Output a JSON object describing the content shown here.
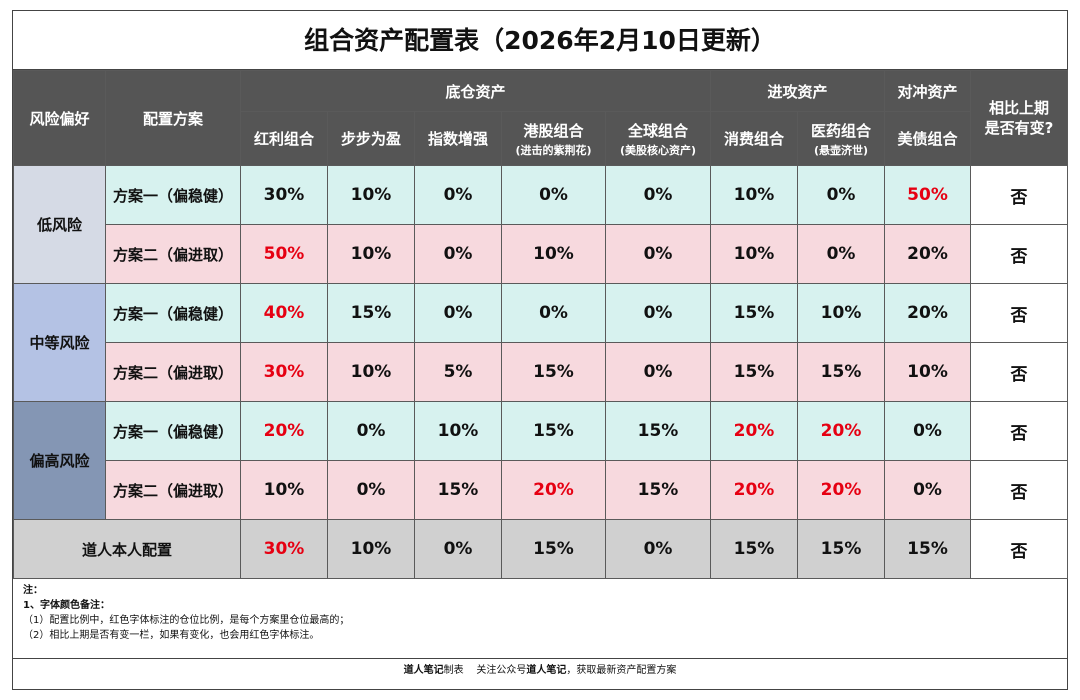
{
  "title": "组合资产配置表（2026年2月10日更新）",
  "headers": {
    "risk": "风险偏好",
    "plan": "配置方案",
    "groups": [
      "底仓资产",
      "进攻资产",
      "对冲资产"
    ],
    "compare": "相比上期是否有变?",
    "columns": [
      {
        "name": "红利组合",
        "sub": ""
      },
      {
        "name": "步步为盈",
        "sub": ""
      },
      {
        "name": "指数增强",
        "sub": ""
      },
      {
        "name": "港股组合",
        "sub": "(进击的紫荆花)"
      },
      {
        "name": "全球组合",
        "sub": "(美股核心资产)"
      },
      {
        "name": "消费组合",
        "sub": ""
      },
      {
        "name": "医药组合",
        "sub": "(悬壶济世)"
      },
      {
        "name": "美债组合",
        "sub": ""
      }
    ]
  },
  "risk_groups": [
    {
      "label": "低风险",
      "rows": [
        {
          "plan": "方案一（偏稳健）",
          "values": [
            "30%",
            "10%",
            "0%",
            "0%",
            "0%",
            "10%",
            "0%",
            "50%"
          ],
          "red": [
            false,
            false,
            false,
            false,
            false,
            false,
            false,
            true
          ],
          "change": "否"
        },
        {
          "plan": "方案二（偏进取）",
          "values": [
            "50%",
            "10%",
            "0%",
            "10%",
            "0%",
            "10%",
            "0%",
            "20%"
          ],
          "red": [
            true,
            false,
            false,
            false,
            false,
            false,
            false,
            false
          ],
          "change": "否"
        }
      ]
    },
    {
      "label": "中等风险",
      "rows": [
        {
          "plan": "方案一（偏稳健）",
          "values": [
            "40%",
            "15%",
            "0%",
            "0%",
            "0%",
            "15%",
            "10%",
            "20%"
          ],
          "red": [
            true,
            false,
            false,
            false,
            false,
            false,
            false,
            false
          ],
          "change": "否"
        },
        {
          "plan": "方案二（偏进取）",
          "values": [
            "30%",
            "10%",
            "5%",
            "15%",
            "0%",
            "15%",
            "15%",
            "10%"
          ],
          "red": [
            true,
            false,
            false,
            false,
            false,
            false,
            false,
            false
          ],
          "change": "否"
        }
      ]
    },
    {
      "label": "偏高风险",
      "rows": [
        {
          "plan": "方案一（偏稳健）",
          "values": [
            "20%",
            "0%",
            "10%",
            "15%",
            "15%",
            "20%",
            "20%",
            "0%"
          ],
          "red": [
            true,
            false,
            false,
            false,
            false,
            true,
            true,
            false
          ],
          "change": "否"
        },
        {
          "plan": "方案二（偏进取）",
          "values": [
            "10%",
            "0%",
            "15%",
            "20%",
            "15%",
            "20%",
            "20%",
            "0%"
          ],
          "red": [
            false,
            false,
            false,
            true,
            false,
            true,
            true,
            false
          ],
          "change": "否"
        }
      ]
    }
  ],
  "self_row": {
    "plan": "道人本人配置",
    "values": [
      "30%",
      "10%",
      "0%",
      "15%",
      "0%",
      "15%",
      "15%",
      "15%"
    ],
    "red": [
      true,
      false,
      false,
      false,
      false,
      false,
      false,
      false
    ],
    "change": "否"
  },
  "notes": {
    "heading": "注：",
    "item1": "1、字体颜色备注：",
    "line1": "（1）配置比例中，红色字体标注的仓位比例，是每个方案里仓位最高的；",
    "line2": "（2）相比上期是否有变一栏，如果有变化，也会用红色字体标注。"
  },
  "footer": {
    "brand1": "道人笔记",
    "text1": "制表    关注公众号",
    "brand2": "道人笔记",
    "text2": "，获取最新资产配置方案"
  }
}
